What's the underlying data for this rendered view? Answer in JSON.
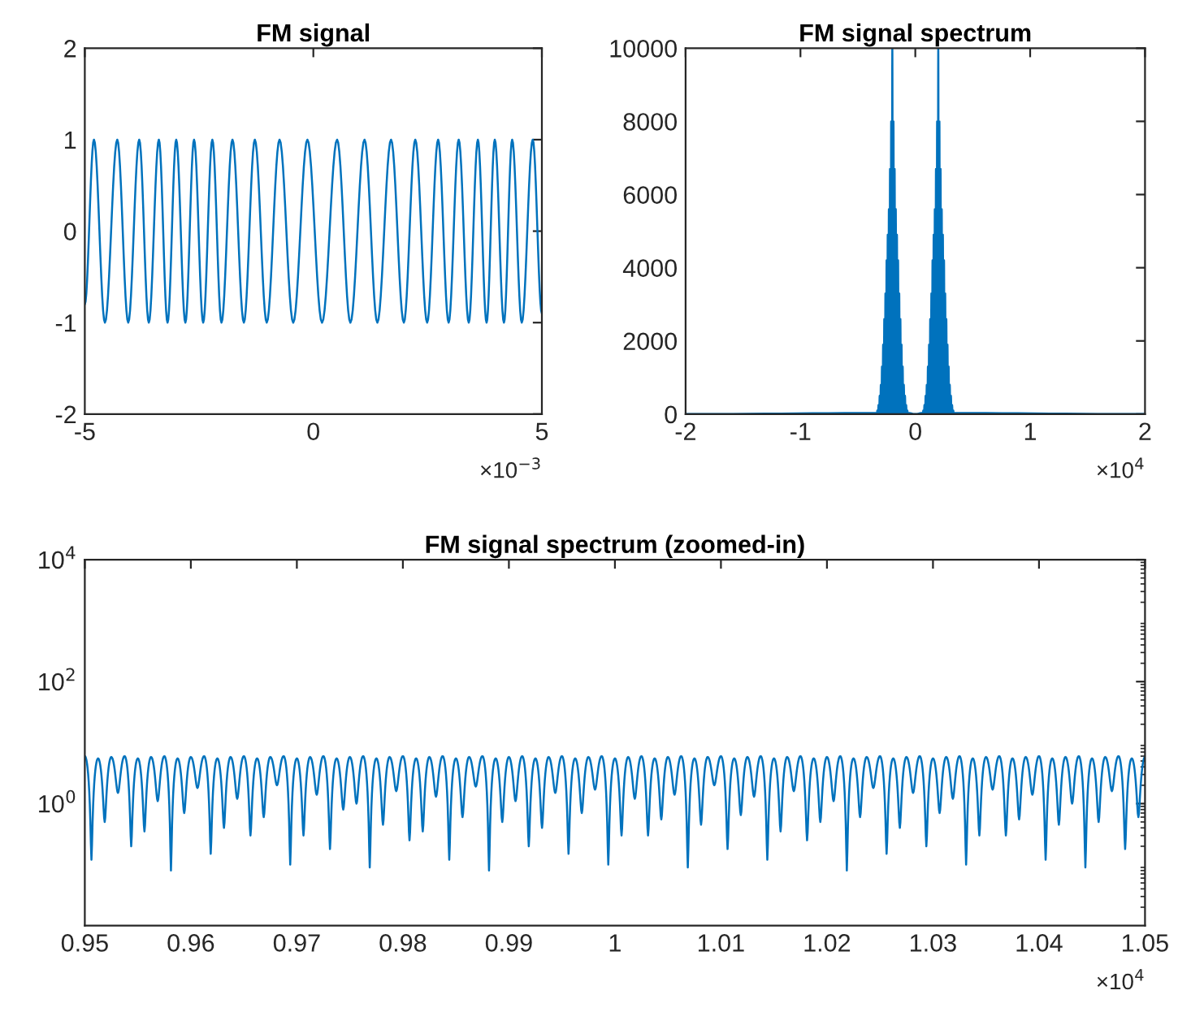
{
  "chart_data": [
    {
      "type": "line",
      "title": "FM signal",
      "annotations": [
        "×10$^{−3}$"
      ],
      "xlim": [
        -5,
        5
      ],
      "xticks": [
        -5,
        0,
        5
      ],
      "ylim": [
        -2,
        2
      ],
      "yticks": [
        -2,
        -1,
        0,
        1,
        2
      ],
      "series": [
        {
          "color": "#0072bd",
          "x": [
            -5,
            -4.8,
            -4.56,
            -4.29,
            -4.05,
            -3.81,
            -3.6,
            -3.38,
            -3.19,
            -3.0,
            -2.8,
            -2.61,
            -2.41,
            -2.21,
            -2.01,
            -1.77,
            -1.52,
            -1.28,
            -1.02,
            -0.74,
            -0.44,
            -0.13,
            0.19,
            0.52,
            0.81,
            1.12,
            1.4,
            1.7,
            1.98,
            2.23,
            2.49,
            2.73,
            2.96,
            3.18,
            3.4,
            3.6,
            3.79,
            3.97,
            4.17,
            4.35,
            4.56,
            4.8,
            5
          ],
          "values": [
            -0.8,
            1,
            -1,
            1,
            -1,
            1,
            -1,
            1,
            -1,
            1,
            -1,
            1,
            -1,
            1,
            -1,
            1,
            -1,
            1,
            -1,
            1,
            -1,
            1,
            -1,
            1,
            -1,
            1,
            -1,
            1,
            -1,
            1,
            -1,
            1,
            -1,
            1,
            -1,
            1,
            -1,
            1,
            -1,
            1,
            -1,
            1,
            -0.9
          ]
        }
      ]
    },
    {
      "type": "line",
      "title": "FM signal spectrum",
      "annotations": [
        "×10$^{4}$"
      ],
      "xlim": [
        -2,
        2
      ],
      "xticks": [
        -2,
        -1,
        0,
        1,
        2
      ],
      "ylim": [
        0,
        10000
      ],
      "yticks": [
        0,
        2000,
        4000,
        6000,
        8000,
        10000
      ],
      "series": [
        {
          "color": "#0072bd",
          "x": [
            -2,
            -0.34,
            -0.335,
            -0.33,
            -0.325,
            -0.32,
            -0.315,
            -0.31,
            -0.305,
            -0.3,
            -0.295,
            -0.29,
            -0.285,
            -0.28,
            -0.275,
            -0.27,
            -0.265,
            -0.26,
            -0.255,
            -0.25,
            -0.245,
            -0.24,
            -0.235,
            -0.23,
            -0.225,
            -0.22,
            -0.215,
            -0.21,
            -0.205,
            -0.2,
            -0.195,
            -0.19,
            -0.185,
            -0.18,
            -0.175,
            -0.17,
            -0.165,
            -0.16,
            -0.155,
            -0.15,
            -0.145,
            -0.14,
            -0.135,
            -0.13,
            -0.125,
            -0.12,
            -0.115,
            -0.11,
            -0.105,
            -0.1,
            -0.095,
            -0.09,
            -0.085,
            -0.08,
            -0.075,
            -0.07,
            -0.065,
            -0.06,
            0,
            0.06,
            0.065,
            0.07,
            0.075,
            0.08,
            0.085,
            0.09,
            0.095,
            0.1,
            0.105,
            0.11,
            0.115,
            0.12,
            0.125,
            0.13,
            0.135,
            0.14,
            0.145,
            0.15,
            0.155,
            0.16,
            0.165,
            0.17,
            0.175,
            0.18,
            0.185,
            0.19,
            0.195,
            0.2,
            0.205,
            0.21,
            0.215,
            0.22,
            0.225,
            0.23,
            0.235,
            0.24,
            0.245,
            0.25,
            0.255,
            0.26,
            0.265,
            0.27,
            0.275,
            0.28,
            0.285,
            0.29,
            0.295,
            0.3,
            0.305,
            0.31,
            0.315,
            0.32,
            0.325,
            0.33,
            0.335,
            0.34,
            2
          ],
          "values": [
            0,
            30,
            0,
            100,
            0,
            250,
            0,
            500,
            0,
            800,
            0,
            1300,
            0,
            1900,
            0,
            2600,
            0,
            3300,
            0,
            4200,
            0,
            4900,
            0,
            5600,
            0,
            6700,
            0,
            8000,
            0,
            10000,
            0,
            8000,
            0,
            6700,
            0,
            5600,
            0,
            4900,
            0,
            4200,
            0,
            3300,
            0,
            2600,
            0,
            1900,
            0,
            1300,
            0,
            800,
            0,
            500,
            0,
            250,
            0,
            100,
            0,
            30,
            0,
            30,
            0,
            100,
            0,
            250,
            0,
            500,
            0,
            800,
            0,
            1300,
            0,
            1900,
            0,
            2600,
            0,
            3300,
            0,
            4200,
            0,
            4900,
            0,
            5600,
            0,
            6700,
            0,
            8000,
            0,
            10000,
            0,
            8000,
            0,
            6700,
            0,
            5600,
            0,
            4900,
            0,
            4200,
            0,
            3300,
            0,
            2600,
            0,
            1900,
            0,
            1300,
            0,
            800,
            0,
            500,
            0,
            250,
            0,
            100,
            0,
            30,
            0
          ]
        }
      ]
    },
    {
      "type": "line",
      "title": "FM signal spectrum (zoomed-in)",
      "annotations": [
        "×10$^{4}$"
      ],
      "log": "y",
      "xlim": [
        0.95,
        1.05
      ],
      "xticks": [
        0.95,
        0.96,
        0.97,
        0.98,
        0.99,
        1,
        1.01,
        1.02,
        1.03,
        1.04,
        1.05
      ],
      "ylim": [
        0.01,
        10000
      ],
      "yticks": [
        {
          "value": 1,
          "label": "10$^{0}$"
        },
        {
          "value": 100,
          "label": "10$^{2}$"
        },
        {
          "value": 10000,
          "label": "10$^{4}$"
        }
      ],
      "series": [
        {
          "color": "#0072bd",
          "x": [
            0.95,
            0.950625,
            0.95125,
            0.951875,
            0.9525,
            0.953125,
            0.95375,
            0.954375,
            0.955,
            0.955625,
            0.95625,
            0.956875,
            0.9575,
            0.958125,
            0.95875,
            0.959375,
            0.96,
            0.960625,
            0.96125,
            0.961875,
            0.9625,
            0.963125,
            0.96375,
            0.964375,
            0.965,
            0.965625,
            0.96625,
            0.966875,
            0.9675,
            0.968125,
            0.96875,
            0.969375,
            0.97,
            0.970625,
            0.97125,
            0.971875,
            0.9725,
            0.973125,
            0.97375,
            0.974375,
            0.975,
            0.975625,
            0.97625,
            0.976875,
            0.9775,
            0.978125,
            0.97875,
            0.979375,
            0.98,
            0.980625,
            0.98125,
            0.981875,
            0.9825,
            0.983125,
            0.98375,
            0.984375,
            0.985,
            0.985625,
            0.98625,
            0.986875,
            0.9875,
            0.988125,
            0.98875,
            0.989375,
            0.99,
            0.990625,
            0.99125,
            0.991875,
            0.9925,
            0.993125,
            0.99375,
            0.994375,
            0.995,
            0.995625,
            0.99625,
            0.996875,
            0.9975,
            0.998125,
            0.99875,
            0.999375,
            1.0,
            1.000625,
            1.00125,
            1.001875,
            1.0025,
            1.003125,
            1.00375,
            1.004375,
            1.005,
            1.005625,
            1.00625,
            1.006875,
            1.0075,
            1.008125,
            1.00875,
            1.009375,
            1.01,
            1.010625,
            1.01125,
            1.011875,
            1.0125,
            1.013125,
            1.01375,
            1.014375,
            1.015,
            1.015625,
            1.01625,
            1.016875,
            1.0175,
            1.018125,
            1.01875,
            1.019375,
            1.02,
            1.020625,
            1.02125,
            1.021875,
            1.0225,
            1.023125,
            1.02375,
            1.024375,
            1.025,
            1.025625,
            1.02625,
            1.026875,
            1.0275,
            1.028125,
            1.02875,
            1.029375,
            1.03,
            1.030625,
            1.03125,
            1.031875,
            1.0325,
            1.033125,
            1.03375,
            1.034375,
            1.035,
            1.035625,
            1.03625,
            1.036875,
            1.0375,
            1.038125,
            1.03875,
            1.039375,
            1.04,
            1.040625,
            1.04125,
            1.041875,
            1.0425,
            1.043125,
            1.04375,
            1.044375,
            1.045,
            1.045625,
            1.04625,
            1.046875,
            1.0475,
            1.048125,
            1.04875,
            1.049375,
            1.05
          ],
          "values": [
            6,
            0.12,
            5.5,
            0.5,
            5.8,
            1.5,
            6,
            0.2,
            5.5,
            0.35,
            5.8,
            1.1,
            6,
            0.08,
            5.5,
            0.7,
            5.8,
            1.8,
            6,
            0.15,
            5.5,
            0.4,
            5.8,
            1.2,
            6,
            0.3,
            5.5,
            0.6,
            5.8,
            2,
            6,
            0.1,
            5.5,
            0.3,
            5.8,
            1.4,
            6,
            0.18,
            5.5,
            0.8,
            5.8,
            1,
            6,
            0.09,
            5.5,
            0.45,
            5.8,
            1.6,
            6,
            0.25,
            5.5,
            0.35,
            5.8,
            1.3,
            6,
            0.12,
            5.5,
            0.6,
            5.8,
            1.9,
            6,
            0.08,
            5.5,
            0.5,
            5.8,
            1.1,
            6,
            0.2,
            5.5,
            0.4,
            5.8,
            1.5,
            6,
            0.15,
            5.5,
            0.7,
            5.8,
            1.7,
            6,
            0.1,
            5.5,
            0.3,
            5.8,
            1.2,
            6,
            0.3,
            5.5,
            0.55,
            5.8,
            1.4,
            6,
            0.09,
            5.5,
            0.45,
            5.8,
            2,
            6,
            0.18,
            5.5,
            0.65,
            5.8,
            1.3,
            6,
            0.12,
            5.5,
            0.35,
            5.8,
            1.6,
            6,
            0.25,
            5.5,
            0.5,
            5.8,
            1.1,
            6,
            0.08,
            5.5,
            0.6,
            5.8,
            1.8,
            6,
            0.15,
            5.5,
            0.4,
            5.8,
            1.5,
            6,
            0.2,
            5.5,
            0.7,
            5.8,
            1.2,
            6,
            0.1,
            5.5,
            0.3,
            5.8,
            1.7,
            6,
            0.3,
            5.5,
            0.55,
            5.8,
            1.4,
            6,
            0.12,
            5.5,
            0.45,
            5.8,
            1,
            6,
            0.09,
            5.5,
            0.5,
            5.8,
            1.6,
            6,
            0.18,
            5.5,
            0.6,
            5.8
          ]
        }
      ]
    }
  ]
}
